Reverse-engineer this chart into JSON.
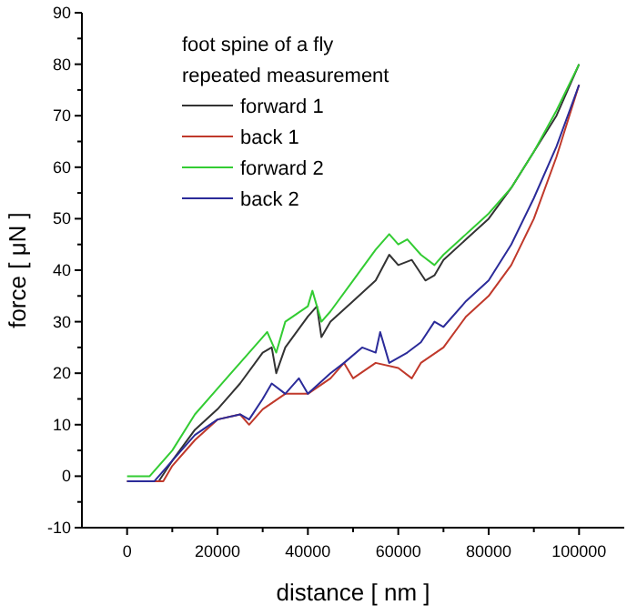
{
  "chart_data": {
    "type": "line",
    "xlabel": "distance [ nm ]",
    "ylabel": "force [ μN ]",
    "legend_title": "foot spine of a fly\nrepeated measurement",
    "legend": "top left",
    "grid": false,
    "marker": "none",
    "line_style": "solid",
    "xlim": [
      -10000,
      110000
    ],
    "ylim": [
      -10,
      90
    ],
    "xticks": [
      0,
      {
        "value": 10000,
        "label": null
      },
      20000,
      {
        "value": 30000,
        "label": null
      },
      40000,
      {
        "value": 50000,
        "label": null
      },
      60000,
      {
        "value": 70000,
        "label": null
      },
      80000,
      {
        "value": 90000,
        "label": null
      },
      100000
    ],
    "yticks": [
      -10,
      {
        "value": -5,
        "label": null
      },
      0,
      {
        "value": 5,
        "label": null
      },
      10,
      {
        "value": 15,
        "label": null
      },
      20,
      {
        "value": 25,
        "label": null
      },
      30,
      {
        "value": 35,
        "label": null
      },
      40,
      {
        "value": 45,
        "label": null
      },
      50,
      {
        "value": 55,
        "label": null
      },
      60,
      {
        "value": 65,
        "label": null
      },
      70,
      {
        "value": 75,
        "label": null
      },
      80,
      {
        "value": 85,
        "label": null
      },
      90
    ],
    "series": [
      {
        "name": "forward 1",
        "color": "#333333",
        "x": [
          0,
          7000,
          10000,
          15000,
          20000,
          25000,
          30000,
          32000,
          33000,
          35000,
          40000,
          42000,
          43000,
          45000,
          50000,
          55000,
          58000,
          60000,
          63000,
          66000,
          68000,
          70000,
          75000,
          80000,
          85000,
          90000,
          95000,
          100000
        ],
        "values": [
          -1,
          -1,
          3,
          9,
          13,
          18,
          24,
          25,
          20,
          25,
          31,
          33,
          27,
          30,
          34,
          38,
          43,
          41,
          42,
          38,
          39,
          42,
          46,
          50,
          56,
          63,
          70,
          80
        ]
      },
      {
        "name": "back 1",
        "color": "#c0392b",
        "x": [
          0,
          8000,
          10000,
          15000,
          20000,
          25000,
          27000,
          30000,
          35000,
          40000,
          45000,
          48000,
          50000,
          55000,
          60000,
          63000,
          65000,
          70000,
          75000,
          80000,
          85000,
          90000,
          95000,
          100000
        ],
        "values": [
          -1,
          -1,
          2,
          7,
          11,
          12,
          10,
          13,
          16,
          16,
          19,
          22,
          19,
          22,
          21,
          19,
          22,
          25,
          31,
          35,
          41,
          50,
          62,
          76
        ]
      },
      {
        "name": "forward 2",
        "color": "#33cc33",
        "x": [
          0,
          5000,
          10000,
          15000,
          20000,
          25000,
          30000,
          31000,
          33000,
          35000,
          40000,
          41000,
          43000,
          45000,
          50000,
          55000,
          58000,
          60000,
          62000,
          65000,
          68000,
          70000,
          75000,
          80000,
          85000,
          90000,
          95000,
          100000
        ],
        "values": [
          0,
          0,
          5,
          12,
          17,
          22,
          27,
          28,
          24,
          30,
          33,
          36,
          30,
          32,
          38,
          44,
          47,
          45,
          46,
          43,
          41,
          43,
          47,
          51,
          56,
          63,
          71,
          80
        ]
      },
      {
        "name": "back 2",
        "color": "#2b2b99",
        "x": [
          0,
          6000,
          10000,
          15000,
          20000,
          25000,
          27000,
          30000,
          32000,
          35000,
          38000,
          40000,
          45000,
          48000,
          52000,
          55000,
          56000,
          58000,
          62000,
          65000,
          68000,
          70000,
          75000,
          80000,
          85000,
          90000,
          95000,
          100000
        ],
        "values": [
          -1,
          -1,
          3,
          8,
          11,
          12,
          11,
          15,
          18,
          16,
          19,
          16,
          20,
          22,
          25,
          24,
          28,
          22,
          24,
          26,
          30,
          29,
          34,
          38,
          45,
          54,
          64,
          76
        ]
      }
    ]
  }
}
